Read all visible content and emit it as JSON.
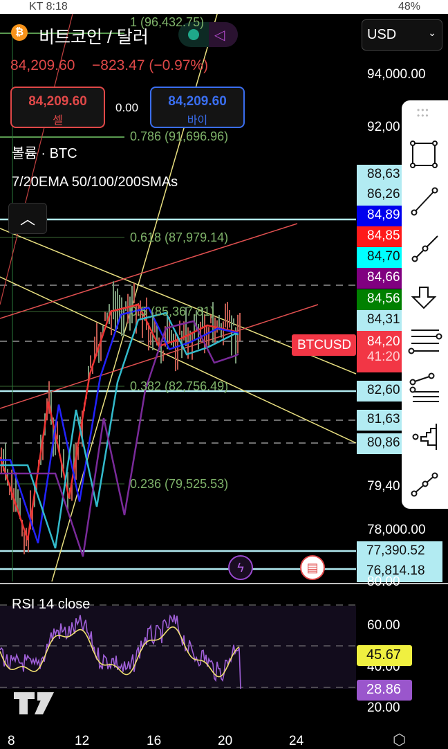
{
  "status_bar": {
    "left": "KT 8:18",
    "right": "48%"
  },
  "header": {
    "title": "비트코인 / 달러",
    "currency": "USD",
    "icon": "bitcoin-icon"
  },
  "quote": {
    "price": "84,209.60",
    "change": "−823.47 (−0.97%)",
    "sell_price": "84,209.60",
    "sell_label": "셀",
    "spread": "0.00",
    "buy_price": "84,209.60",
    "buy_label": "바이"
  },
  "indicators": {
    "volume": "볼륨 · BTC",
    "ma": "7/20EMA 50/100/200SMAs",
    "rsi": "RSI 14 close"
  },
  "fib": [
    "1 (96,432.75)",
    "0.786 (91,696.96)",
    "0.618 (87,979.14)",
    "0.5 (85,367.81)",
    "0.382 (82,756.49)",
    "0.236 (79,525.53)"
  ],
  "price_axis": [
    "94,000.00",
    "92,00",
    "79,40",
    "78,000.00"
  ],
  "price_tags": [
    {
      "text": "88,63",
      "bg": "#b2ebf2",
      "fg": "#111"
    },
    {
      "text": "86,26",
      "bg": "#b2ebf2",
      "fg": "#111"
    },
    {
      "text": "84,89",
      "bg": "#0000ee",
      "fg": "#fff"
    },
    {
      "text": "84,85",
      "bg": "#ff1a1a",
      "fg": "#fff"
    },
    {
      "text": "84,70",
      "bg": "#00ffff",
      "fg": "#111"
    },
    {
      "text": "84,66",
      "bg": "#800080",
      "fg": "#fff"
    },
    {
      "text": "84,56",
      "bg": "#008000",
      "fg": "#fff"
    },
    {
      "text": "84,31",
      "bg": "#b2ebf2",
      "fg": "#111"
    },
    {
      "text": "82,60",
      "bg": "#b2ebf2",
      "fg": "#111"
    },
    {
      "text": "81,63",
      "bg": "#b2ebf2",
      "fg": "#111"
    },
    {
      "text": "80,86",
      "bg": "#b2ebf2",
      "fg": "#111"
    },
    {
      "text": "77,390.52",
      "bg": "#b2ebf2",
      "fg": "#111"
    },
    {
      "text": "76,814.18",
      "bg": "#b2ebf2",
      "fg": "#111"
    }
  ],
  "current": {
    "symbol": "BTCUSD",
    "price": "84,20",
    "countdown": "41:20",
    "color": "#f23645"
  },
  "rsi_axis": [
    "80.00",
    "60.00",
    "40.00",
    "20.00"
  ],
  "rsi_values": {
    "rsi": "28.86",
    "ma": "45.67"
  },
  "time_axis": [
    "8",
    "12",
    "16",
    "20",
    "24"
  ],
  "toolbar": [
    "rectangle-tool",
    "trend-line-tool",
    "ray-tool",
    "arrow-down-tool",
    "parallel-channel-tool",
    "fib-retracement-tool",
    "volume-profile-tool",
    "path-tool"
  ]
}
